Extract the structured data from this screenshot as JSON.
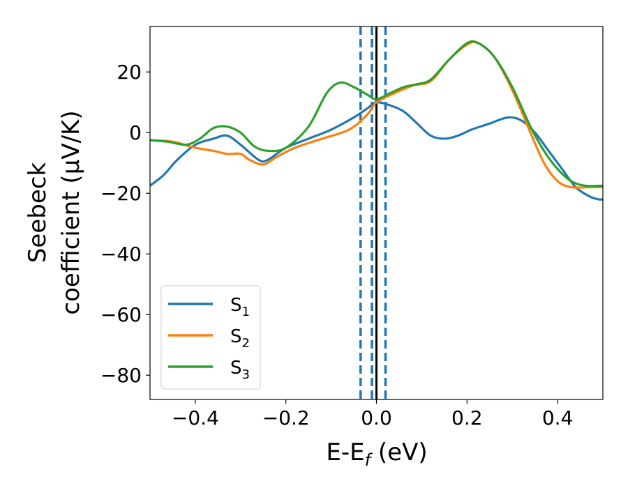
{
  "chart_data": {
    "type": "line",
    "title": "",
    "xlabel": {
      "main": "E-E",
      "sub": "f",
      "tail": " (eV)"
    },
    "ylabel": {
      "line1": "Seebeck",
      "line2": "coefficient  (μV/K)"
    },
    "xlim": [
      -0.5,
      0.5
    ],
    "ylim": [
      -88,
      35
    ],
    "xticks": [
      -0.4,
      -0.2,
      0.0,
      0.2,
      0.4
    ],
    "xtick_labels": [
      "−0.4",
      "−0.2",
      "0.0",
      "0.2",
      "0.4"
    ],
    "yticks": [
      -80,
      -60,
      -40,
      -20,
      0,
      20
    ],
    "ytick_labels": [
      "−80",
      "−60",
      "−40",
      "−20",
      "0",
      "20"
    ],
    "grid": false,
    "legend_position": "lower-left",
    "vlines": [
      {
        "x": -0.035,
        "style": "dashed",
        "color": "#1f77b4"
      },
      {
        "x": -0.01,
        "style": "dashed",
        "color": "#1f77b4"
      },
      {
        "x": 0.0,
        "style": "solid",
        "color": "#000000"
      },
      {
        "x": 0.02,
        "style": "dashed",
        "color": "#1f77b4"
      }
    ],
    "series": [
      {
        "name": "S",
        "sub": "1",
        "color": "#1f77b4",
        "points": [
          [
            -0.5,
            -17.5
          ],
          [
            -0.47,
            -14
          ],
          [
            -0.44,
            -9
          ],
          [
            -0.4,
            -4
          ],
          [
            -0.36,
            -2
          ],
          [
            -0.33,
            -1
          ],
          [
            -0.3,
            -4
          ],
          [
            -0.26,
            -9
          ],
          [
            -0.24,
            -9
          ],
          [
            -0.2,
            -5
          ],
          [
            -0.15,
            -2
          ],
          [
            -0.1,
            1
          ],
          [
            -0.05,
            5
          ],
          [
            -0.02,
            8
          ],
          [
            0.0,
            10
          ],
          [
            0.03,
            9
          ],
          [
            0.06,
            7
          ],
          [
            0.09,
            3
          ],
          [
            0.12,
            -1
          ],
          [
            0.15,
            -2
          ],
          [
            0.18,
            -1
          ],
          [
            0.21,
            1
          ],
          [
            0.25,
            3
          ],
          [
            0.29,
            5
          ],
          [
            0.32,
            4
          ],
          [
            0.35,
            0
          ],
          [
            0.38,
            -6
          ],
          [
            0.41,
            -12
          ],
          [
            0.44,
            -18
          ],
          [
            0.47,
            -21
          ],
          [
            0.49,
            -22
          ],
          [
            0.5,
            -22
          ]
        ]
      },
      {
        "name": "S",
        "sub": "2",
        "color": "#ff7f0e",
        "points": [
          [
            -0.5,
            -2.5
          ],
          [
            -0.45,
            -3
          ],
          [
            -0.4,
            -5
          ],
          [
            -0.36,
            -6
          ],
          [
            -0.33,
            -7
          ],
          [
            -0.3,
            -7
          ],
          [
            -0.28,
            -9
          ],
          [
            -0.25,
            -10.5
          ],
          [
            -0.22,
            -8
          ],
          [
            -0.18,
            -5
          ],
          [
            -0.12,
            -2
          ],
          [
            -0.06,
            1
          ],
          [
            -0.02,
            6
          ],
          [
            0.0,
            10
          ],
          [
            0.04,
            13
          ],
          [
            0.08,
            15.5
          ],
          [
            0.12,
            17
          ],
          [
            0.16,
            24
          ],
          [
            0.2,
            29
          ],
          [
            0.225,
            29.5
          ],
          [
            0.26,
            25
          ],
          [
            0.3,
            14
          ],
          [
            0.34,
            0
          ],
          [
            0.37,
            -10
          ],
          [
            0.4,
            -16
          ],
          [
            0.43,
            -18
          ],
          [
            0.47,
            -18
          ],
          [
            0.5,
            -18
          ]
        ]
      },
      {
        "name": "S",
        "sub": "3",
        "color": "#2ca02c",
        "points": [
          [
            -0.5,
            -2.5
          ],
          [
            -0.46,
            -3
          ],
          [
            -0.42,
            -4
          ],
          [
            -0.39,
            -2
          ],
          [
            -0.36,
            1.5
          ],
          [
            -0.33,
            2
          ],
          [
            -0.3,
            0
          ],
          [
            -0.27,
            -4.5
          ],
          [
            -0.24,
            -6
          ],
          [
            -0.2,
            -5
          ],
          [
            -0.15,
            2
          ],
          [
            -0.11,
            13
          ],
          [
            -0.08,
            16.5
          ],
          [
            -0.05,
            15
          ],
          [
            -0.02,
            12.5
          ],
          [
            0.0,
            11
          ],
          [
            0.03,
            13
          ],
          [
            0.06,
            15
          ],
          [
            0.09,
            16
          ],
          [
            0.12,
            17.5
          ],
          [
            0.16,
            24
          ],
          [
            0.2,
            29.5
          ],
          [
            0.225,
            29.5
          ],
          [
            0.26,
            25
          ],
          [
            0.3,
            15
          ],
          [
            0.34,
            2
          ],
          [
            0.37,
            -6
          ],
          [
            0.4,
            -12
          ],
          [
            0.43,
            -16
          ],
          [
            0.46,
            -17.5
          ],
          [
            0.5,
            -17.5
          ]
        ]
      }
    ]
  }
}
